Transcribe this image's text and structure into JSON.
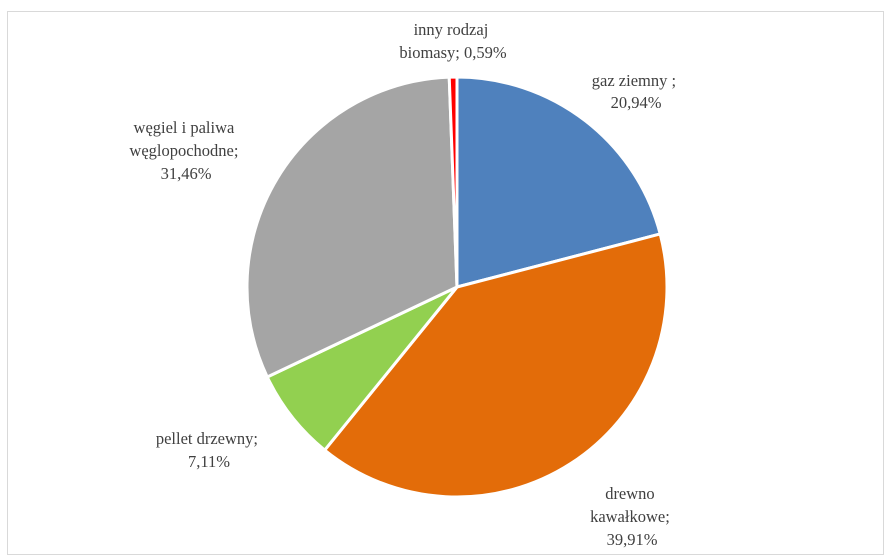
{
  "chart_data": {
    "type": "pie",
    "title": "",
    "start_angle_deg": 0,
    "direction": "clockwise",
    "slices": [
      {
        "name": "gaz ziemny ;",
        "value": 20.94,
        "value_label": "20,94%",
        "label_lines": [
          "gaz ziemny ;",
          "20,94%"
        ],
        "color": "#4F81BD"
      },
      {
        "name": "drewno kawałkowe;",
        "value": 39.91,
        "value_label": "39,91%",
        "label_lines": [
          "drewno",
          "kawałkowe;",
          "39,91%"
        ],
        "color": "#E36C09"
      },
      {
        "name": "pellet drzewny;",
        "value": 7.11,
        "value_label": "7,11%",
        "label_lines": [
          "pellet drzewny;",
          "7,11%"
        ],
        "color": "#92D050"
      },
      {
        "name": "węgiel i paliwa węglopochodne;",
        "value": 31.46,
        "value_label": "31,46%",
        "label_lines": [
          "węgiel i paliwa",
          "węglopochodne;",
          "31,46%"
        ],
        "color": "#A5A5A5"
      },
      {
        "name": "inny rodzaj biomasy;",
        "value": 0.59,
        "value_label": "0,59%",
        "label_lines": [
          "inny rodzaj",
          "biomasy; 0,59%"
        ],
        "color": "#FF0000"
      }
    ]
  }
}
